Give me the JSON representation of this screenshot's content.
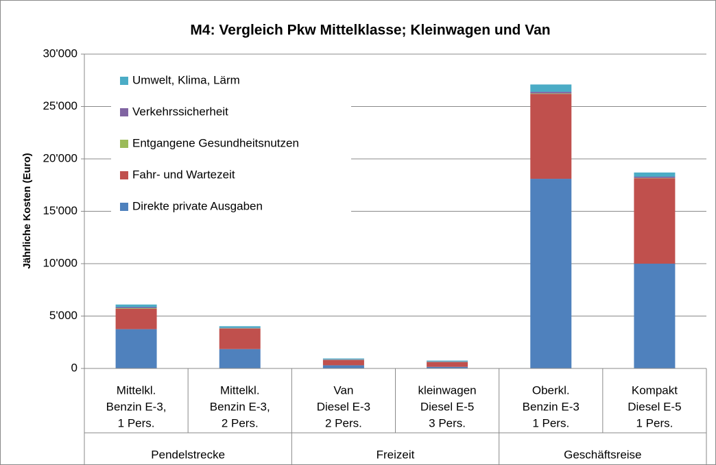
{
  "chart_data": {
    "type": "stacked_bar",
    "title": "M4: Vergleich Pkw Mittelklasse; Kleinwagen und Van",
    "y_label": "Jährliche Kosten (Euro)",
    "categories": [
      [
        "Mittelkl.",
        "Benzin E-3,",
        "1 Pers."
      ],
      [
        "Mittelkl.",
        "Benzin E-3,",
        "2 Pers."
      ],
      [
        "Van",
        "Diesel E-3",
        "2 Pers."
      ],
      [
        "kleinwagen",
        "Diesel E-5",
        "3 Pers."
      ],
      [
        "Oberkl.",
        "Benzin E-3",
        "1 Pers."
      ],
      [
        "Kompakt",
        "Diesel E-5",
        "1 Pers."
      ]
    ],
    "groups": [
      "Pendelstrecke",
      "Freizeit",
      "Geschäftsreise"
    ],
    "series": [
      {
        "name": "Direkte private Ausgaben",
        "color": "#4f81bd",
        "values": [
          3750,
          1850,
          300,
          150,
          18100,
          10000
        ]
      },
      {
        "name": "Fahr- und Wartezeit",
        "color": "#c0504d",
        "values": [
          1950,
          1950,
          500,
          450,
          8100,
          8150
        ]
      },
      {
        "name": "Entgangene Gesundheitsnutzen",
        "color": "#9bbb59",
        "values": [
          50,
          30,
          20,
          20,
          50,
          30
        ]
      },
      {
        "name": "Verkehrssicherheit",
        "color": "#8064a2",
        "values": [
          100,
          50,
          50,
          50,
          150,
          120
        ]
      },
      {
        "name": "Umwelt, Klima, Lärm",
        "color": "#4bacc6",
        "values": [
          250,
          150,
          80,
          80,
          700,
          400
        ]
      }
    ],
    "ylim": [
      0,
      30000
    ],
    "yticks": [
      0,
      {
        "value": 5000,
        "label": "5'000"
      },
      {
        "value": 10000,
        "label": "10'000"
      },
      {
        "value": 15000,
        "label": "15'000"
      },
      {
        "value": 20000,
        "label": "20'000"
      },
      {
        "value": 25000,
        "label": "25'000"
      },
      {
        "value": 30000,
        "label": "30'000"
      }
    ],
    "grid": true,
    "legend": "upper left"
  }
}
